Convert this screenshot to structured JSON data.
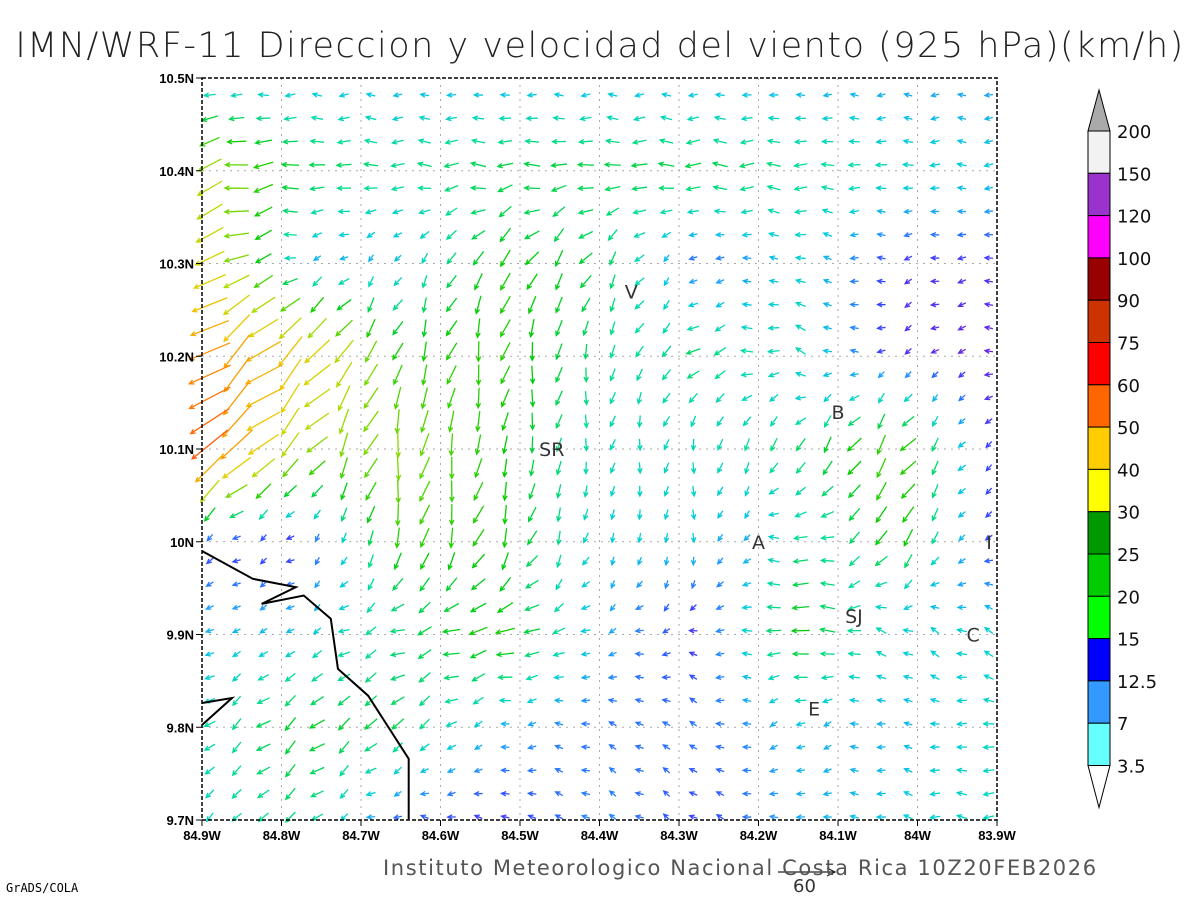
{
  "title": "IMN/WRF-11 Direccion y velocidad del viento (925 hPa)(km/h)",
  "footer": "Instituto Meteorologico Nacional Costa Rica 10Z20FEB2026",
  "credit": "GrADS/COLA",
  "chart_data": {
    "type": "vector-field",
    "units": "km/h",
    "level": "925 hPa",
    "lon_range": [
      -84.9,
      -83.9
    ],
    "lat_range": [
      9.7,
      10.5
    ],
    "x_tick_labels": [
      "84.9W",
      "84.8W",
      "84.7W",
      "84.6W",
      "84.5W",
      "84.4W",
      "84.3W",
      "84.2W",
      "84.1W",
      "84W",
      "83.9W"
    ],
    "y_tick_labels": [
      "10.5N",
      "10.4N",
      "10.3N",
      "10.2N",
      "10.1N",
      "10N",
      "9.9N",
      "9.8N",
      "9.7N"
    ],
    "reference_vector": {
      "speed": 60,
      "label": "60"
    },
    "cities": [
      {
        "label": "V",
        "lon": -84.36,
        "lat": 10.27
      },
      {
        "label": "SR",
        "lon": -84.46,
        "lat": 10.1
      },
      {
        "label": "B",
        "lon": -84.1,
        "lat": 10.14
      },
      {
        "label": "A",
        "lon": -84.2,
        "lat": 10.0
      },
      {
        "label": "SJ",
        "lon": -84.08,
        "lat": 9.92
      },
      {
        "label": "C",
        "lon": -83.93,
        "lat": 9.9
      },
      {
        "label": "E",
        "lon": -84.13,
        "lat": 9.82
      },
      {
        "label": "I",
        "lon": -83.91,
        "lat": 10.0
      }
    ],
    "coarse_grid_lons": [
      -84.9,
      -84.775,
      -84.65,
      -84.525,
      -84.4,
      -84.275,
      -84.15,
      -84.025,
      -83.9
    ],
    "coarse_grid_lats": [
      10.5,
      10.4,
      10.3,
      10.2,
      10.1,
      10.0,
      9.9,
      9.8,
      9.7
    ],
    "u": [
      [
        -9,
        -9,
        -8,
        -8,
        -8,
        -8,
        -8,
        -7,
        -7
      ],
      [
        -30,
        -18,
        -15,
        -18,
        -18,
        -18,
        -15,
        -12,
        -10
      ],
      [
        -35,
        -8,
        -5,
        -12,
        -10,
        -4,
        -10,
        -3,
        -3
      ],
      [
        -40,
        -30,
        -8,
        -5,
        -2,
        -15,
        -12,
        -2,
        -2
      ],
      [
        -45,
        -20,
        -5,
        -3,
        -2,
        -2,
        -8,
        -15,
        -2
      ],
      [
        -3,
        -2,
        -5,
        -8,
        -3,
        0,
        -15,
        -10,
        -3
      ],
      [
        -8,
        -8,
        -15,
        -22,
        -8,
        -3,
        -20,
        -10,
        -10
      ],
      [
        -10,
        -15,
        -12,
        -8,
        -5,
        -5,
        -8,
        -8,
        -12
      ],
      [
        -8,
        -12,
        -5,
        -3,
        -6,
        -3,
        -8,
        -10,
        -12
      ]
    ],
    "v": [
      [
        0,
        0,
        0,
        0,
        0,
        0,
        0,
        0,
        0
      ],
      [
        -8,
        0,
        0,
        0,
        0,
        0,
        0,
        0,
        0
      ],
      [
        -15,
        -2,
        -8,
        -18,
        -15,
        -2,
        3,
        -1,
        0
      ],
      [
        -30,
        -30,
        -20,
        -22,
        -15,
        -8,
        5,
        -2,
        0
      ],
      [
        -35,
        -20,
        -28,
        -20,
        -12,
        -12,
        -15,
        -20,
        -1
      ],
      [
        -2,
        -1,
        -22,
        -20,
        -10,
        -10,
        3,
        -20,
        0
      ],
      [
        -3,
        -5,
        -5,
        -5,
        -3,
        0,
        0,
        5,
        5
      ],
      [
        -8,
        -12,
        -12,
        -2,
        2,
        3,
        -5,
        2,
        -2
      ],
      [
        -8,
        -10,
        1,
        1,
        3,
        2,
        0,
        2,
        0
      ]
    ],
    "coastline": [
      [
        -84.9,
        9.99
      ],
      [
        -84.836,
        9.96
      ],
      [
        -84.782,
        9.951
      ],
      [
        -84.825,
        9.933
      ],
      [
        -84.772,
        9.942
      ],
      [
        -84.738,
        9.917
      ],
      [
        -84.729,
        9.863
      ],
      [
        -84.691,
        9.834
      ],
      [
        -84.64,
        9.766
      ],
      [
        -84.64,
        9.701
      ]
    ],
    "colorbar": {
      "labels": [
        "200",
        "150",
        "120",
        "100",
        "90",
        "75",
        "60",
        "50",
        "40",
        "30",
        "25",
        "20",
        "15",
        "12.5",
        "7",
        "3.5"
      ],
      "colors": [
        "#f2f2f2",
        "#9933cc",
        "#ff00ff",
        "#990000",
        "#cc3300",
        "#ff0000",
        "#ff6600",
        "#ffcc00",
        "#ffff00",
        "#009900",
        "#00cc00",
        "#00ff00",
        "#0000ff",
        "#3399ff",
        "#66ffff"
      ],
      "over_color": "#aaaaaa",
      "under_color": "#ffffff"
    },
    "vector_color_ramp": [
      [
        0,
        "#9900cc"
      ],
      [
        4,
        "#3344ff"
      ],
      [
        7,
        "#1e9bff"
      ],
      [
        10,
        "#00ccdd"
      ],
      [
        14,
        "#00dd99"
      ],
      [
        20,
        "#00cc00"
      ],
      [
        30,
        "#aadd00"
      ],
      [
        40,
        "#eecc00"
      ],
      [
        50,
        "#ff8800"
      ],
      [
        60,
        "#ff2020"
      ]
    ]
  }
}
